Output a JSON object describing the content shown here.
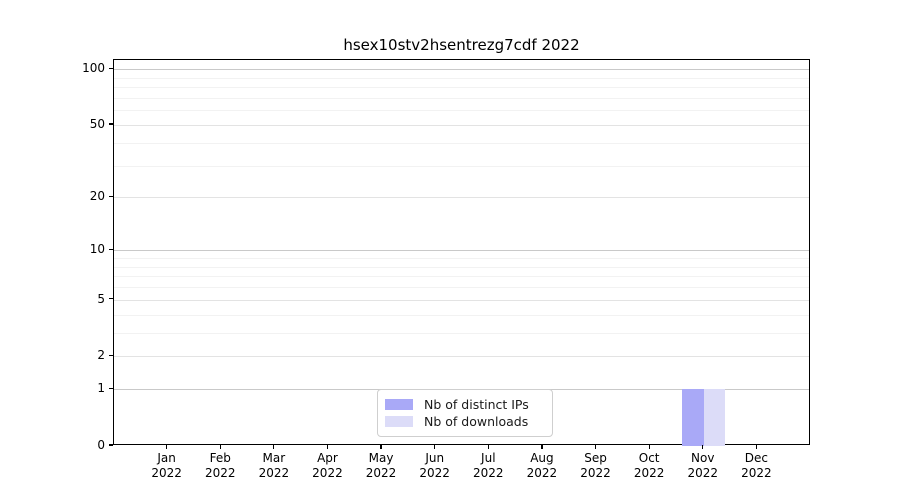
{
  "chart_data": {
    "type": "bar",
    "title": "hsex10stv2hsentrezg7cdf 2022",
    "categories": [
      "Jan",
      "Feb",
      "Mar",
      "Apr",
      "May",
      "Jun",
      "Jul",
      "Aug",
      "Sep",
      "Oct",
      "Nov",
      "Dec"
    ],
    "tick_year": "2022",
    "series": [
      {
        "name": "Nb of distinct IPs",
        "color": "#a9a9f7",
        "values": [
          0,
          0,
          0,
          0,
          0,
          0,
          0,
          0,
          0,
          0,
          1,
          0
        ]
      },
      {
        "name": "Nb of downloads",
        "color": "#dcdcf8",
        "values": [
          0,
          0,
          0,
          0,
          0,
          0,
          0,
          0,
          0,
          0,
          1,
          0
        ]
      }
    ],
    "yscale": "log10(1+v)",
    "yticks": [
      0,
      1,
      2,
      5,
      10,
      20,
      50,
      100
    ],
    "yticks_minor": [
      3,
      4,
      6,
      7,
      8,
      9,
      30,
      40,
      60,
      70,
      80,
      90
    ],
    "ylim": [
      0,
      112
    ],
    "xlim": [
      -1,
      12
    ],
    "bar_width_units": 0.4,
    "grid": {
      "decade_color": "#c9c9c9",
      "major_color": "#e3e3e3",
      "minor_color": "#f2f2f2"
    },
    "legend_position": "lower center"
  }
}
